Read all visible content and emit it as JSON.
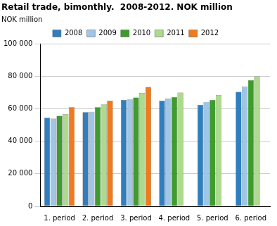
{
  "chart_data": {
    "type": "bar",
    "title": "Retail trade, bimonthly.  2008-2012. NOK million",
    "ylabel": "NOK million",
    "categories": [
      "1. period",
      "2. period",
      "3. period",
      "4. period",
      "5. period",
      "6. period"
    ],
    "series": [
      {
        "name": "2008",
        "color": "#2f7fc0",
        "values": [
          54500,
          58000,
          65500,
          65000,
          62500,
          70500
        ]
      },
      {
        "name": "2009",
        "color": "#9fc6e6",
        "values": [
          54000,
          58200,
          65800,
          66300,
          64300,
          73800
        ]
      },
      {
        "name": "2010",
        "color": "#3e9c2c",
        "values": [
          55700,
          61000,
          67000,
          67300,
          65500,
          77700
        ]
      },
      {
        "name": "2011",
        "color": "#addb8e",
        "values": [
          56800,
          63000,
          69800,
          70000,
          68500,
          80000
        ]
      },
      {
        "name": "2012",
        "color": "#f07a1e",
        "values": [
          61000,
          65000,
          73500,
          null,
          null,
          null
        ]
      }
    ],
    "ylim": [
      0,
      100000
    ],
    "yticks": [
      0,
      {
        "value": 20000,
        "label": "20 000"
      },
      {
        "value": 40000,
        "label": "40 000"
      },
      {
        "value": 60000,
        "label": "60 000"
      },
      {
        "value": 80000,
        "label": "80 000"
      },
      {
        "value": 100000,
        "label": "100 000"
      }
    ],
    "grid": true,
    "legend": "top"
  }
}
